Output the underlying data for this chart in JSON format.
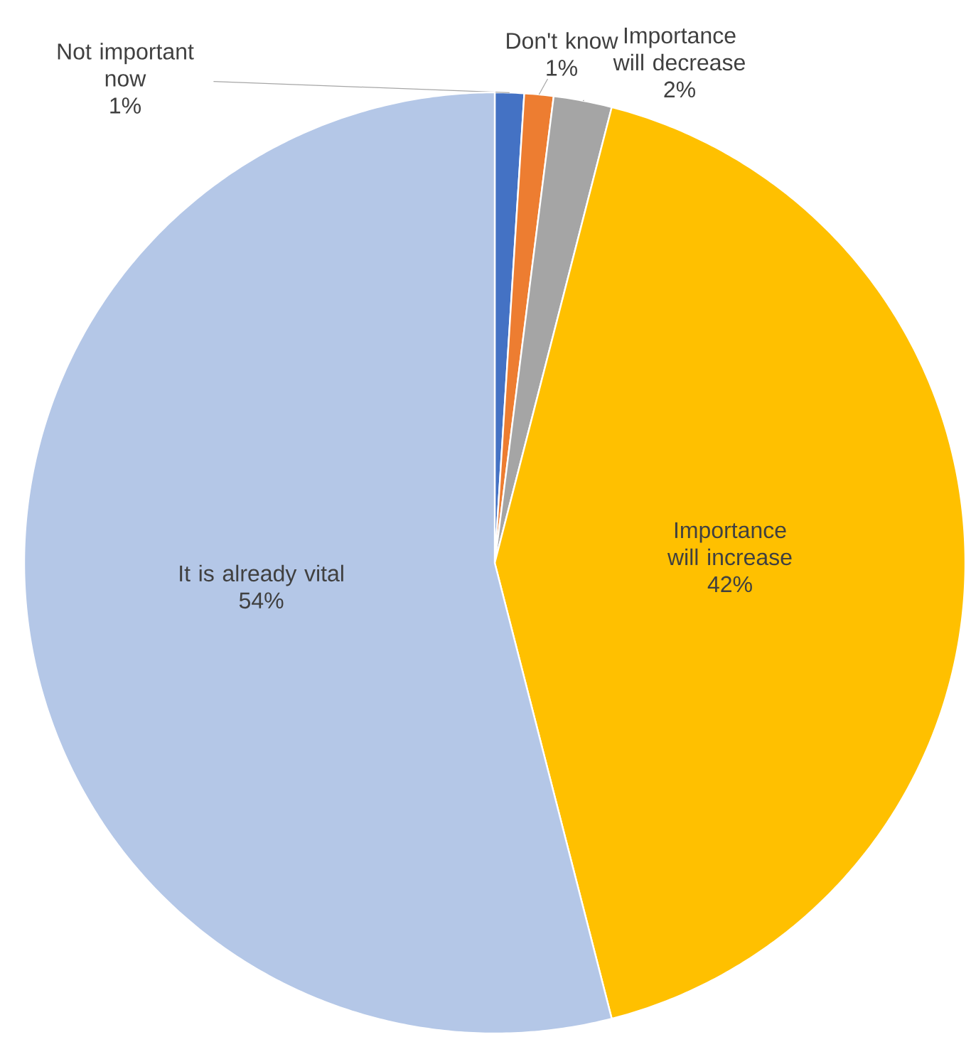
{
  "chart_data": {
    "type": "pie",
    "categories": [
      "Not important now",
      "Don't know",
      "Importance will decrease",
      "Importance will increase",
      "It is already vital"
    ],
    "values": [
      1,
      1,
      2,
      42,
      54
    ],
    "value_labels": [
      "1%",
      "1%",
      "2%",
      "42%",
      "54%"
    ],
    "colors": [
      "#4472c4",
      "#ed7d31",
      "#a5a5a5",
      "#ffc000",
      "#b4c7e7"
    ]
  }
}
